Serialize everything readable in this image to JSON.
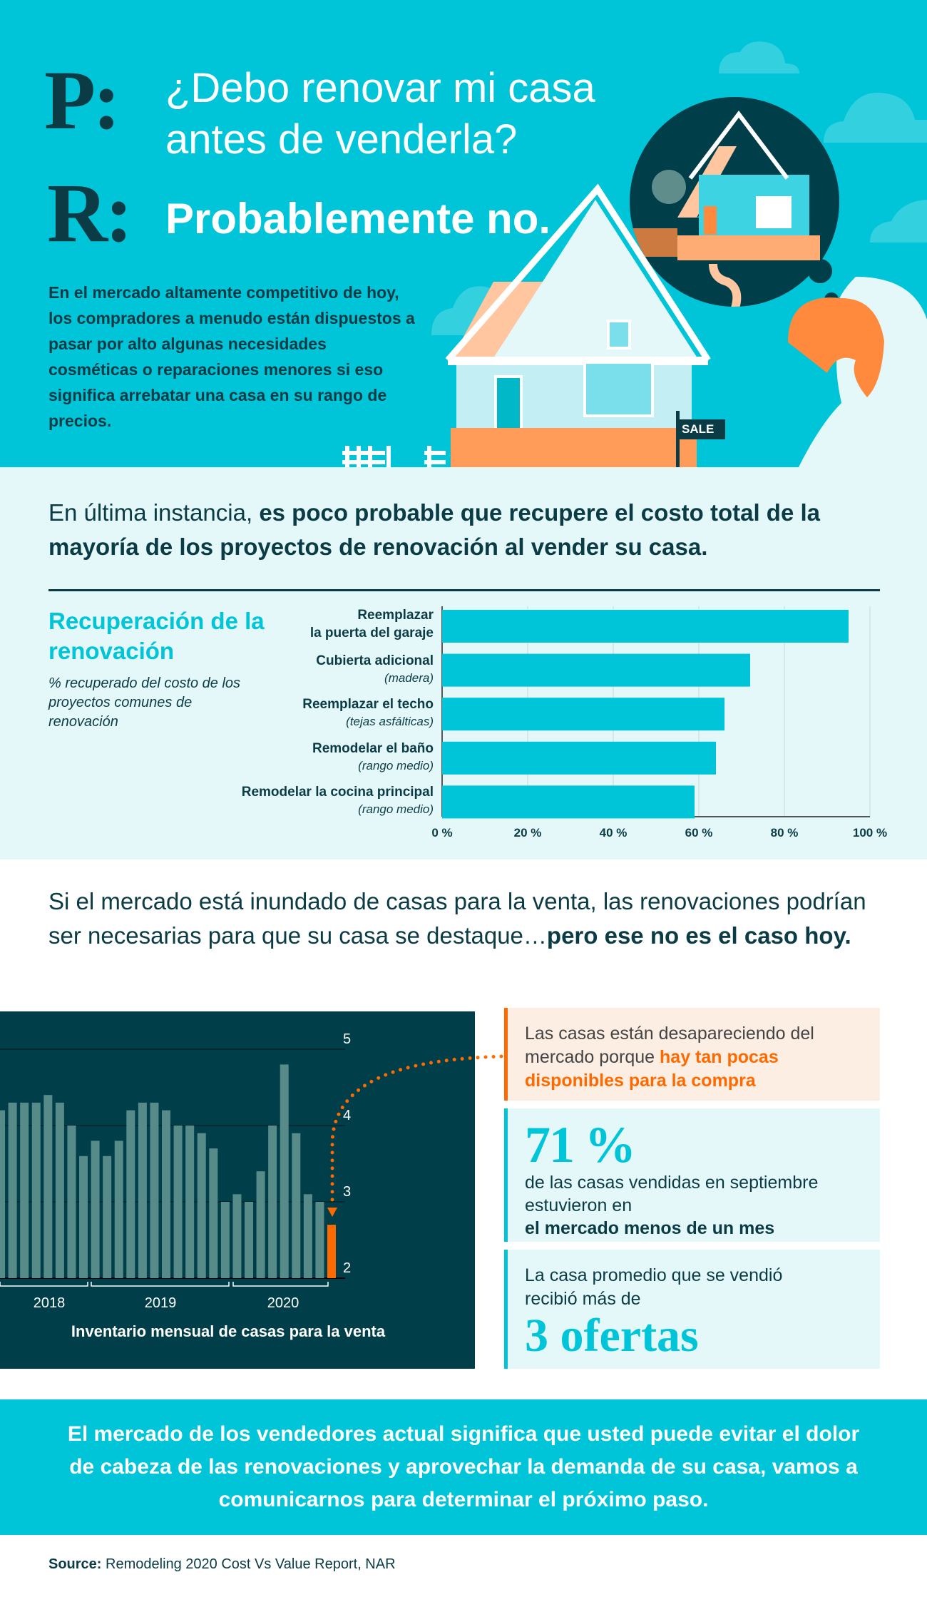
{
  "hero": {
    "q_letter": "P:",
    "question_line1": "¿Debo renovar mi casa",
    "question_line2": "antes de venderla?",
    "a_letter": "R:",
    "answer": "Probablemente no.",
    "intro": "En el mercado altamente competitivo de hoy, los compradores a menudo están dispuestos a pasar por alto algunas necesidades cosméticas o reparaciones menores si eso significa arrebatar una casa en su rango de precios.",
    "sale_sign": "SALE"
  },
  "section2": {
    "headline_plain": "En última instancia, ",
    "headline_bold": "es poco probable que recupere el costo total de la mayoría de  los proyectos de renovación al vender su casa."
  },
  "section3": {
    "text_plain": "Si el mercado está inundado de casas para la venta, las renovaciones podrían ser necesarias para que su casa se destaque…",
    "text_bold": "pero ese no es el caso hoy."
  },
  "stats": {
    "box1_plain": "Las casas están desapareciendo del mercado porque ",
    "box1_highlight": "hay tan pocas disponibles para la compra",
    "box2_big": "71 %",
    "box2_plain": "de las casas vendidas en septiembre estuvieron en",
    "box2_bold": "el mercado menos de un mes",
    "box3_plain": "La casa promedio que se vendió recibió más de",
    "box3_big": "3 ofertas"
  },
  "footer": {
    "text": "El mercado de los vendedores actual significa que usted puede evitar el dolor de cabeza de las renovaciones y aprovechar la demanda de su casa, vamos a comunicarnos para determinar el próximo paso."
  },
  "source": {
    "label": "Source:",
    "text": " Remodeling 2020 Cost Vs Value Report, NAR"
  },
  "colors": {
    "teal": "#00c4d8",
    "dark": "#0b3c46",
    "orange": "#ff6a00",
    "bar_gray": "#578b89",
    "light": "#e4f8fa",
    "peach": "#fdeee4"
  },
  "chart_data": [
    {
      "type": "bar",
      "orientation": "horizontal",
      "title": "Recuperación de la renovación",
      "subtitle": "% recuperado del costo de los proyectos comunes de renovación",
      "categories": [
        {
          "label": "Reemplazar la puerta del garaje",
          "sub": ""
        },
        {
          "label": "Cubierta adicional",
          "sub": "(madera)"
        },
        {
          "label": "Reemplazar el techo",
          "sub": "(tejas asfálticas)"
        },
        {
          "label": "Remodelar el baño",
          "sub": "(rango medio)"
        },
        {
          "label": "Remodelar la cocina principal",
          "sub": "(rango medio)"
        }
      ],
      "values": [
        95,
        72,
        66,
        64,
        59
      ],
      "xlim": [
        0,
        100
      ],
      "ticks": [
        "0 %",
        "20 %",
        "40 %",
        "60 %",
        "80 %",
        "100 %"
      ],
      "grid": true
    },
    {
      "type": "bar",
      "title": "Inventario mensual de casas para la venta",
      "values": [
        4.2,
        4.3,
        4.3,
        4.3,
        4.4,
        4.3,
        4.0,
        3.6,
        3.8,
        3.6,
        3.8,
        4.2,
        4.3,
        4.3,
        4.2,
        4.0,
        4.0,
        3.9,
        3.7,
        3.0,
        3.1,
        3.0,
        3.4,
        4.0,
        4.8,
        3.9,
        3.1,
        3.0,
        2.7
      ],
      "highlight_last": true,
      "ylim": [
        2,
        5
      ],
      "yticks": [
        "2",
        "3",
        "4",
        "5"
      ],
      "year_labels": [
        "2018",
        "2019",
        "2020"
      ],
      "grid": true
    }
  ]
}
